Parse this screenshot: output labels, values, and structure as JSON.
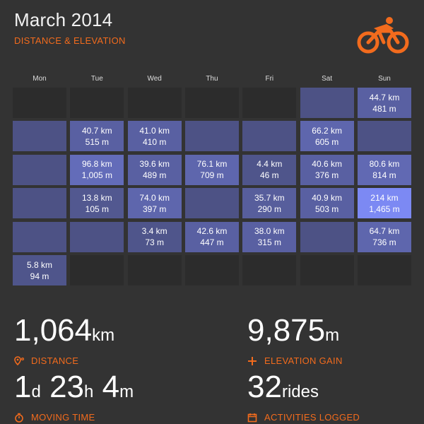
{
  "header": {
    "title": "March 2014",
    "subtitle": "DISTANCE & ELEVATION"
  },
  "logo_icon": "cyclist-icon",
  "accent_color": "#f26b1d",
  "weekdays": [
    "Mon",
    "Tue",
    "Wed",
    "Thu",
    "Fri",
    "Sat",
    "Sun"
  ],
  "calendar": [
    [
      {
        "active": false,
        "distance": "",
        "elevation": ""
      },
      {
        "active": false,
        "distance": "",
        "elevation": ""
      },
      {
        "active": false,
        "distance": "",
        "elevation": ""
      },
      {
        "active": false,
        "distance": "",
        "elevation": ""
      },
      {
        "active": false,
        "distance": "",
        "elevation": ""
      },
      {
        "active": true,
        "distance": "",
        "elevation": "",
        "intensity": 0.05
      },
      {
        "active": true,
        "distance": "44.7 km",
        "elevation": "481 m",
        "intensity": 0.3
      }
    ],
    [
      {
        "active": true,
        "distance": "",
        "elevation": "",
        "intensity": 0.05
      },
      {
        "active": true,
        "distance": "40.7 km",
        "elevation": "515 m",
        "intensity": 0.3
      },
      {
        "active": true,
        "distance": "41.0 km",
        "elevation": "410 m",
        "intensity": 0.3
      },
      {
        "active": true,
        "distance": "",
        "elevation": "",
        "intensity": 0.05
      },
      {
        "active": true,
        "distance": "",
        "elevation": "",
        "intensity": 0.05
      },
      {
        "active": true,
        "distance": "66.2 km",
        "elevation": "605 m",
        "intensity": 0.4
      },
      {
        "active": true,
        "distance": "",
        "elevation": "",
        "intensity": 0.05
      }
    ],
    [
      {
        "active": true,
        "distance": "",
        "elevation": "",
        "intensity": 0.05
      },
      {
        "active": true,
        "distance": "96.8 km",
        "elevation": "1,005 m",
        "intensity": 0.5
      },
      {
        "active": true,
        "distance": "39.6 km",
        "elevation": "489 m",
        "intensity": 0.3
      },
      {
        "active": true,
        "distance": "76.1 km",
        "elevation": "709 m",
        "intensity": 0.4
      },
      {
        "active": true,
        "distance": "4.4 km",
        "elevation": "46 m",
        "intensity": 0.1
      },
      {
        "active": true,
        "distance": "40.6 km",
        "elevation": "376 m",
        "intensity": 0.3
      },
      {
        "active": true,
        "distance": "80.6 km",
        "elevation": "814 m",
        "intensity": 0.45
      }
    ],
    [
      {
        "active": true,
        "distance": "",
        "elevation": "",
        "intensity": 0.05
      },
      {
        "active": true,
        "distance": "13.8 km",
        "elevation": "105 m",
        "intensity": 0.15
      },
      {
        "active": true,
        "distance": "74.0 km",
        "elevation": "397 m",
        "intensity": 0.4
      },
      {
        "active": true,
        "distance": "",
        "elevation": "",
        "intensity": 0.05
      },
      {
        "active": true,
        "distance": "35.7 km",
        "elevation": "290 m",
        "intensity": 0.25
      },
      {
        "active": true,
        "distance": "40.9 km",
        "elevation": "503 m",
        "intensity": 0.3
      },
      {
        "active": true,
        "distance": "214 km",
        "elevation": "1,465 m",
        "intensity": 1.0
      }
    ],
    [
      {
        "active": true,
        "distance": "",
        "elevation": "",
        "intensity": 0.05
      },
      {
        "active": true,
        "distance": "",
        "elevation": "",
        "intensity": 0.05
      },
      {
        "active": true,
        "distance": "3.4 km",
        "elevation": "73 m",
        "intensity": 0.1
      },
      {
        "active": true,
        "distance": "42.6 km",
        "elevation": "447 m",
        "intensity": 0.3
      },
      {
        "active": true,
        "distance": "38.0 km",
        "elevation": "315 m",
        "intensity": 0.3
      },
      {
        "active": true,
        "distance": "",
        "elevation": "",
        "intensity": 0.05
      },
      {
        "active": true,
        "distance": "64.7 km",
        "elevation": "736 m",
        "intensity": 0.4
      }
    ],
    [
      {
        "active": true,
        "distance": "5.8 km",
        "elevation": "94 m",
        "intensity": 0.1
      },
      {
        "active": false,
        "distance": "",
        "elevation": "",
        "intensity": 0
      },
      {
        "active": false,
        "distance": "",
        "elevation": "",
        "intensity": 0
      },
      {
        "active": false,
        "distance": "",
        "elevation": "",
        "intensity": 0
      },
      {
        "active": false,
        "distance": "",
        "elevation": "",
        "intensity": 0
      },
      {
        "active": false,
        "distance": "",
        "elevation": "",
        "intensity": 0
      },
      {
        "active": false,
        "distance": "",
        "elevation": "",
        "intensity": 0
      }
    ]
  ],
  "stats": {
    "distance": {
      "value": "1,064",
      "unit": "km",
      "label": "DISTANCE",
      "icon": "map-pin-icon"
    },
    "elevation": {
      "value": "9,875",
      "unit": "m",
      "label": "ELEVATION GAIN",
      "icon": "plus-icon"
    },
    "moving_time": {
      "days": "1",
      "days_unit": "d",
      "hours": "23",
      "hours_unit": "h",
      "minutes": "4",
      "minutes_unit": "m",
      "label": "MOVING TIME",
      "icon": "stopwatch-icon"
    },
    "activities": {
      "value": "32",
      "unit": "rides",
      "label": "ACTIVITIES LOGGED",
      "icon": "calendar-icon"
    }
  }
}
